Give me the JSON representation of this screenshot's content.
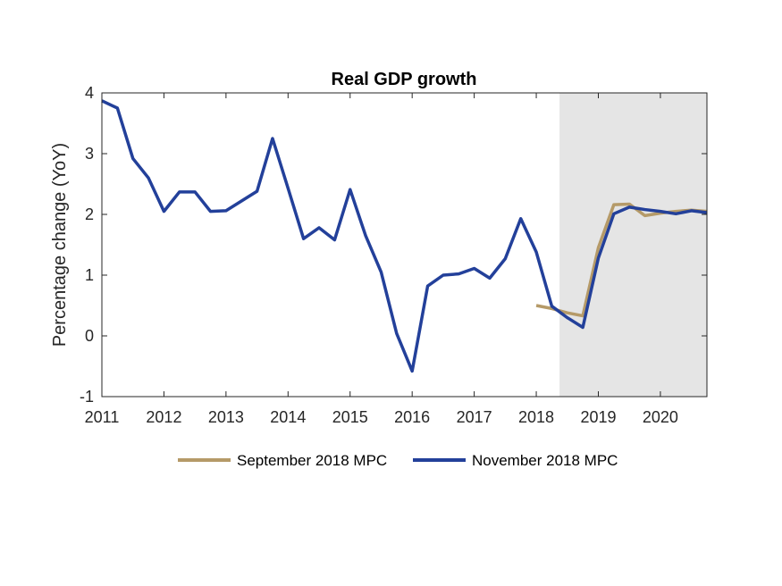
{
  "chart_data": {
    "type": "line",
    "title": "Real GDP growth",
    "xlabel": "",
    "ylabel": "Percentage change (YoY)",
    "xlim": [
      2011,
      2020.75
    ],
    "ylim": [
      -1,
      4
    ],
    "xticks": [
      2011,
      2012,
      2013,
      2014,
      2015,
      2016,
      2017,
      2018,
      2019,
      2020
    ],
    "xtick_labels": [
      "2011",
      "2012",
      "2013",
      "2014",
      "2015",
      "2016",
      "2017",
      "2018",
      "2019",
      "2020"
    ],
    "yticks": [
      -1,
      0,
      1,
      2,
      3,
      4
    ],
    "ytick_labels": [
      "-1",
      "0",
      "1",
      "2",
      "3",
      "4"
    ],
    "grid": false,
    "forecast_shade": {
      "from": 2018.375,
      "to": 2020.75,
      "color": "#e5e5e5"
    },
    "legend_position": "bottom",
    "series": [
      {
        "name": "September 2018 MPC",
        "color": "#b59a68",
        "x": [
          2018.0,
          2018.25,
          2018.5,
          2018.75,
          2019.0,
          2019.25,
          2019.5,
          2019.75,
          2020.0,
          2020.25,
          2020.5,
          2020.75
        ],
        "values": [
          0.5,
          0.45,
          0.38,
          0.33,
          1.45,
          2.16,
          2.17,
          1.98,
          2.02,
          2.05,
          2.07,
          2.05
        ]
      },
      {
        "name": "November 2018 MPC",
        "color": "#23409a",
        "x": [
          2011.0,
          2011.25,
          2011.5,
          2011.75,
          2012.0,
          2012.25,
          2012.5,
          2012.75,
          2013.0,
          2013.25,
          2013.5,
          2013.75,
          2014.0,
          2014.25,
          2014.5,
          2014.75,
          2015.0,
          2015.25,
          2015.5,
          2015.75,
          2016.0,
          2016.25,
          2016.5,
          2016.75,
          2017.0,
          2017.25,
          2017.5,
          2017.75,
          2018.0,
          2018.25,
          2018.5,
          2018.75,
          2019.0,
          2019.25,
          2019.5,
          2019.75,
          2020.0,
          2020.25,
          2020.5,
          2020.75
        ],
        "values": [
          3.87,
          3.75,
          2.92,
          2.6,
          2.05,
          2.37,
          2.37,
          2.05,
          2.06,
          2.22,
          2.38,
          3.25,
          2.43,
          1.6,
          1.78,
          1.58,
          2.41,
          1.65,
          1.05,
          0.04,
          -0.58,
          0.82,
          1.0,
          1.02,
          1.11,
          0.95,
          1.27,
          1.93,
          1.38,
          0.49,
          0.3,
          0.14,
          1.28,
          2.01,
          2.12,
          2.08,
          2.05,
          2.01,
          2.06,
          2.03
        ]
      }
    ]
  }
}
